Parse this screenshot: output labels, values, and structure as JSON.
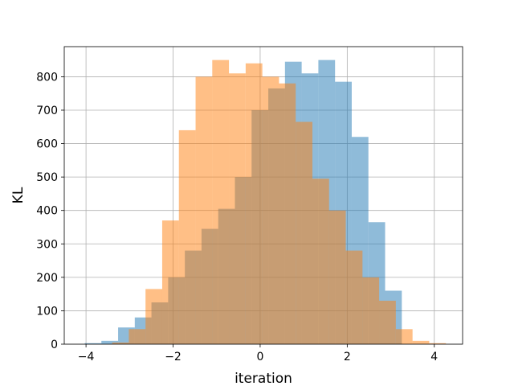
{
  "chart_data": {
    "type": "bar",
    "subtype": "overlaid-histogram",
    "title": "",
    "xlabel": "iteration",
    "ylabel": "KL",
    "xlim": [
      -4.5,
      4.65
    ],
    "ylim": [
      0,
      890
    ],
    "xticks": [
      -4,
      -2,
      0,
      2,
      4
    ],
    "xtick_labels": [
      "−4",
      "−2",
      "0",
      "2",
      "4"
    ],
    "yticks": [
      0,
      100,
      200,
      300,
      400,
      500,
      600,
      700,
      800
    ],
    "ytick_labels": [
      "0",
      "100",
      "200",
      "300",
      "400",
      "500",
      "600",
      "700",
      "800"
    ],
    "grid": true,
    "legend": "none",
    "series": [
      {
        "color": "#1f77b4",
        "alpha": 0.5,
        "bin_width": 0.3833,
        "bins_start": [
          -4.03,
          -3.647,
          -3.263,
          -2.88,
          -2.497,
          -2.113,
          -1.73,
          -1.347,
          -0.963,
          -0.58,
          -0.197,
          0.187,
          0.57,
          0.953,
          1.337,
          1.72,
          2.103,
          2.487,
          2.87
        ],
        "values": [
          3,
          10,
          50,
          80,
          125,
          200,
          280,
          345,
          405,
          500,
          700,
          765,
          845,
          810,
          850,
          785,
          620,
          365,
          160
        ]
      },
      {
        "color": "#ff7f0e",
        "alpha": 0.5,
        "bin_width": 0.3833,
        "bins_start": [
          -3.4,
          -3.017,
          -2.633,
          -2.25,
          -1.867,
          -1.483,
          -1.1,
          -0.717,
          -0.333,
          0.05,
          0.433,
          0.817,
          1.2,
          1.583,
          1.967,
          2.35,
          2.733,
          3.117,
          3.5,
          3.883
        ],
        "values": [
          5,
          45,
          165,
          370,
          640,
          800,
          850,
          810,
          840,
          800,
          780,
          665,
          495,
          400,
          280,
          200,
          130,
          45,
          10,
          3
        ]
      }
    ]
  }
}
